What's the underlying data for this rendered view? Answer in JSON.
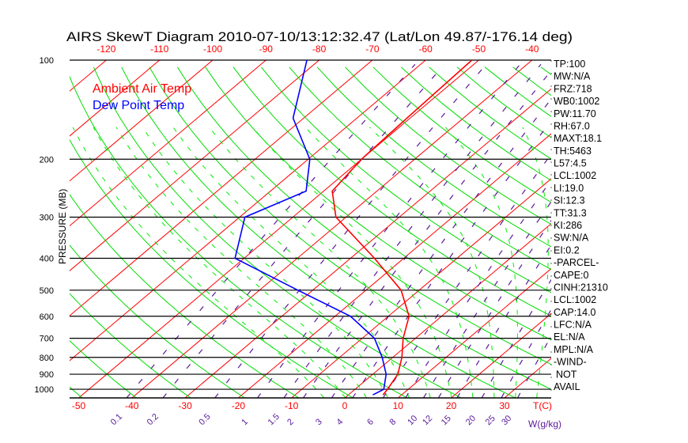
{
  "chart_data": {
    "type": "line",
    "subtype": "skew-t log-p",
    "title": "AIRS SkewT Diagram 2010-07-10/13:12:32.47 (Lat/Lon 49.87/-176.14 deg)",
    "ylabel": "PRESSURE (MB)",
    "xlabel": "T(C)",
    "mixing_ratio_label": "W(g/kg)",
    "legend": [
      {
        "name": "Ambient Air Temp",
        "color": "#ff0000"
      },
      {
        "name": "Dew Point Temp",
        "color": "#0000ff"
      }
    ],
    "legend_placement": "top-left",
    "pressure_ticks": [
      100,
      200,
      300,
      400,
      500,
      600,
      700,
      800,
      900,
      1000
    ],
    "pressure_range": [
      1063,
      100
    ],
    "bottom_temp_ticks": [
      -50,
      -40,
      -30,
      -20,
      -10,
      0,
      10,
      20,
      30
    ],
    "top_temp_ticks": [
      -120,
      -110,
      -100,
      -90,
      -80,
      -70,
      -60,
      -50,
      -40
    ],
    "mixing_ratio_ticks": [
      "0.1",
      "0.2",
      "0.5",
      "1",
      "1.5",
      "2",
      "3",
      "4",
      "6",
      "8",
      "10",
      "12",
      "15",
      "20",
      "25",
      "30"
    ],
    "series": [
      {
        "name": "Ambient Air Temp",
        "color": "#ff0000",
        "pressure": [
          1040,
          1000,
          900,
          800,
          700,
          600,
          500,
          400,
          300,
          250,
          200,
          150,
          100
        ],
        "temperature": [
          6.5,
          6.1,
          4.7,
          1.7,
          -2.3,
          -6.1,
          -13.4,
          -25.5,
          -41.9,
          -48.4,
          -50.0,
          -50.6,
          -51.3
        ]
      },
      {
        "name": "Dew Point Temp",
        "color": "#0000ff",
        "pressure": [
          1040,
          1000,
          900,
          800,
          700,
          600,
          500,
          400,
          300,
          250,
          200,
          150,
          100
        ],
        "temperature": [
          4.6,
          5.4,
          2.5,
          -2.0,
          -7.7,
          -17.1,
          -32.8,
          -51.7,
          -59.0,
          -53.3,
          -59.7,
          -72.0,
          -82.3
        ]
      }
    ],
    "colors": {
      "isotherm": "#ff0000",
      "dry_adiabat": "#00dd00",
      "moist_adiabat": "#00ee00",
      "mixing_ratio": "#5a1a9a",
      "isobar": "#000000"
    }
  },
  "indices": [
    "TP:100",
    "MW:N/A",
    "FRZ:718",
    "WB0:1002",
    "PW:11.70",
    "RH:67.0",
    "MAXT:18.1",
    "TH:5463",
    "L57:4.5",
    "LCL:1002",
    "LI:19.0",
    "SI:12.3",
    "TT:31.3",
    "KI:286",
    "SW:N/A",
    "EI:0.2",
    "-PARCEL-",
    "CAPE:0",
    "CINH:21310",
    "LCL:1002",
    "CAP:14.0",
    "LFC:N/A",
    "EL:N/A",
    "MPL:N/A",
    "-WIND-",
    "NOT",
    "AVAIL"
  ]
}
